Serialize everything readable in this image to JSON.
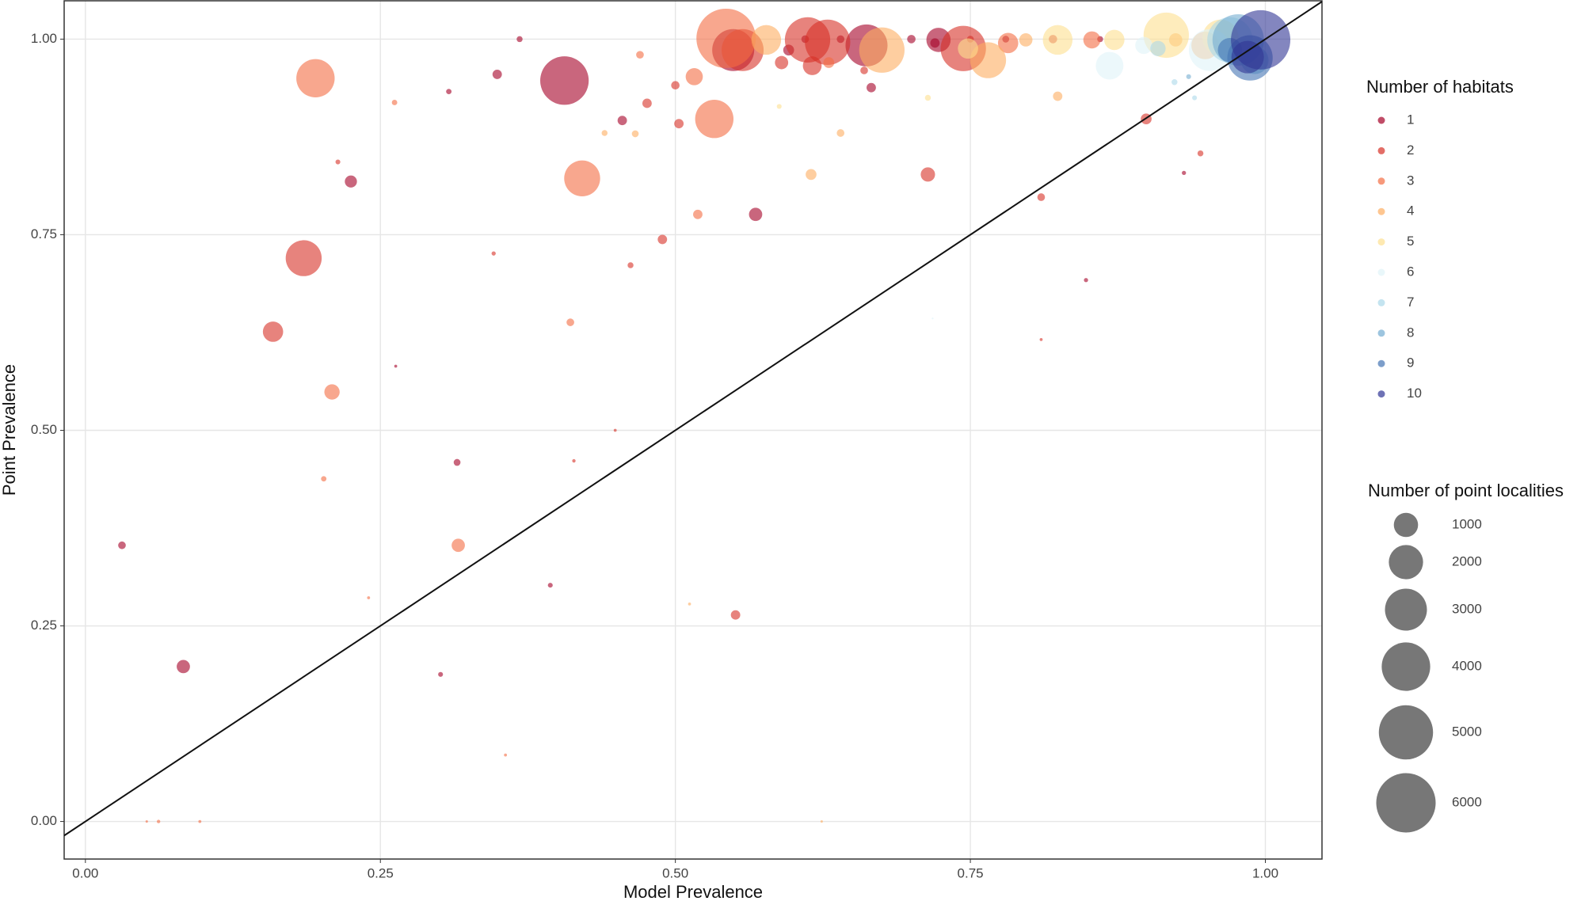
{
  "chart_data": {
    "type": "scatter",
    "xlabel": "Model Prevalence",
    "ylabel": "Point Prevalence",
    "xlim": [
      -0.018,
      1.048
    ],
    "ylim": [
      -0.048,
      1.049
    ],
    "xticks": [
      {
        "value": 0,
        "label": "0.00"
      },
      {
        "value": 0.25,
        "label": "0.25"
      },
      {
        "value": 0.5,
        "label": "0.50"
      },
      {
        "value": 0.75,
        "label": "0.75"
      },
      {
        "value": 1,
        "label": "1.00"
      }
    ],
    "yticks": [
      {
        "value": 0,
        "label": "0.00"
      },
      {
        "value": 0.25,
        "label": "0.25"
      },
      {
        "value": 0.5,
        "label": "0.50"
      },
      {
        "value": 0.75,
        "label": "0.75"
      },
      {
        "value": 1,
        "label": "1.00"
      }
    ],
    "grid": true,
    "color_legend_title": "Number of habitats",
    "size_legend_title": "Number of point localities",
    "size_legend": {
      "values": [
        1000,
        2000,
        3000,
        4000,
        5000,
        6000
      ]
    },
    "series": [
      {
        "name": "1",
        "color": "#a50026",
        "x": [
          0.406,
          0.225,
          0.031,
          0.083,
          0.568,
          0.549,
          0.315,
          0.301,
          0.394,
          0.308,
          0.349,
          0.455,
          0.662,
          0.596,
          0.666,
          0.723,
          0.931,
          0.848,
          0.263,
          0.368,
          0.61,
          0.7,
          0.78,
          0.86,
          0.64,
          0.72
        ],
        "y": [
          0.947,
          0.818,
          0.353,
          0.198,
          0.776,
          0.986,
          0.459,
          0.188,
          0.302,
          0.933,
          0.955,
          0.896,
          0.992,
          0.986,
          0.938,
          0.999,
          0.829,
          0.692,
          0.582,
          1.0,
          1.0,
          1.0,
          1.0,
          1.0,
          1.0,
          0.995
        ],
        "sizes": [
          4000,
          250,
          100,
          300,
          300,
          3000,
          80,
          40,
          40,
          50,
          150,
          150,
          3000,
          200,
          150,
          1000,
          30,
          30,
          15,
          60,
          100,
          120,
          80,
          60,
          100,
          150
        ]
      },
      {
        "name": "2",
        "color": "#d73027",
        "x": [
          0.185,
          0.159,
          0.557,
          0.612,
          0.629,
          0.616,
          0.714,
          0.489,
          0.551,
          0.899,
          0.945,
          0.81,
          0.503,
          0.462,
          0.476,
          0.5,
          0.744,
          0.81,
          0.449,
          0.414,
          0.346,
          0.214,
          0.59,
          0.66,
          0.75,
          0.82
        ],
        "y": [
          0.72,
          0.626,
          0.986,
          0.999,
          0.996,
          0.966,
          0.827,
          0.744,
          0.264,
          0.898,
          0.854,
          0.798,
          0.892,
          0.711,
          0.918,
          0.941,
          0.988,
          0.616,
          0.5,
          0.461,
          0.726,
          0.843,
          0.97,
          0.96,
          1.0,
          1.0
        ],
        "sizes": [
          2200,
          700,
          3000,
          3500,
          3500,
          600,
          350,
          150,
          150,
          200,
          60,
          100,
          150,
          60,
          150,
          120,
          3500,
          15,
          15,
          20,
          30,
          40,
          300,
          100,
          80,
          120
        ]
      },
      {
        "name": "3",
        "color": "#f46d43",
        "x": [
          0.195,
          0.421,
          0.533,
          0.543,
          0.209,
          0.316,
          0.411,
          0.519,
          0.516,
          0.782,
          0.202,
          0.062,
          0.052,
          0.097,
          0.356,
          0.24,
          0.853,
          0.262,
          0.47,
          0.63
        ],
        "y": [
          0.95,
          0.822,
          0.898,
          1.001,
          0.549,
          0.353,
          0.638,
          0.776,
          0.952,
          0.995,
          0.438,
          0.0,
          0.0,
          0.0,
          0.085,
          0.286,
          0.999,
          0.919,
          0.98,
          0.97
        ],
        "sizes": [
          2500,
          2200,
          2500,
          6000,
          400,
          300,
          100,
          150,
          500,
          700,
          50,
          20,
          10,
          15,
          15,
          15,
          500,
          50,
          100,
          200
        ]
      },
      {
        "name": "4",
        "color": "#fdae61",
        "x": [
          0.765,
          0.675,
          0.577,
          0.466,
          0.615,
          0.797,
          0.824,
          0.924,
          0.512,
          0.624,
          0.949,
          0.44,
          0.64
        ],
        "y": [
          0.973,
          0.986,
          0.999,
          0.879,
          0.827,
          0.999,
          0.927,
          0.999,
          0.278,
          0.0,
          0.992,
          0.88,
          0.88
        ],
        "sizes": [
          2200,
          3500,
          1500,
          80,
          200,
          300,
          150,
          300,
          15,
          10,
          1300,
          60,
          100
        ]
      },
      {
        "name": "5",
        "color": "#fee090",
        "x": [
          0.916,
          0.824,
          0.872,
          0.748,
          0.962,
          0.714,
          0.588
        ],
        "y": [
          1.005,
          0.999,
          0.999,
          0.988,
          1.002,
          0.925,
          0.914
        ],
        "sizes": [
          3500,
          1500,
          700,
          700,
          2200,
          60,
          40
        ]
      },
      {
        "name": "6",
        "color": "#e0f3f8",
        "x": [
          0.868,
          0.897,
          0.953,
          0.718
        ],
        "y": [
          0.966,
          0.992,
          0.986,
          0.643
        ],
        "sizes": [
          1300,
          500,
          3000,
          5
        ]
      },
      {
        "name": "7",
        "color": "#abd9e9",
        "x": [
          0.923,
          0.94,
          0.909,
          0.97
        ],
        "y": [
          0.945,
          0.925,
          0.988,
          0.999
        ],
        "sizes": [
          60,
          40,
          400,
          3500
        ]
      },
      {
        "name": "8",
        "color": "#74add1",
        "x": [
          0.977,
          0.935,
          0.991
        ],
        "y": [
          0.999,
          0.952,
          0.973
        ],
        "sizes": [
          4500,
          40,
          1300
        ]
      },
      {
        "name": "9",
        "color": "#4575b4",
        "x": [
          0.987,
          0.97
        ],
        "y": [
          0.976,
          0.986
        ],
        "sizes": [
          3500,
          1000
        ]
      },
      {
        "name": "10",
        "color": "#313695",
        "x": [
          0.996,
          0.985
        ],
        "y": [
          0.999,
          0.977
        ],
        "sizes": [
          6000,
          1800
        ]
      }
    ]
  }
}
